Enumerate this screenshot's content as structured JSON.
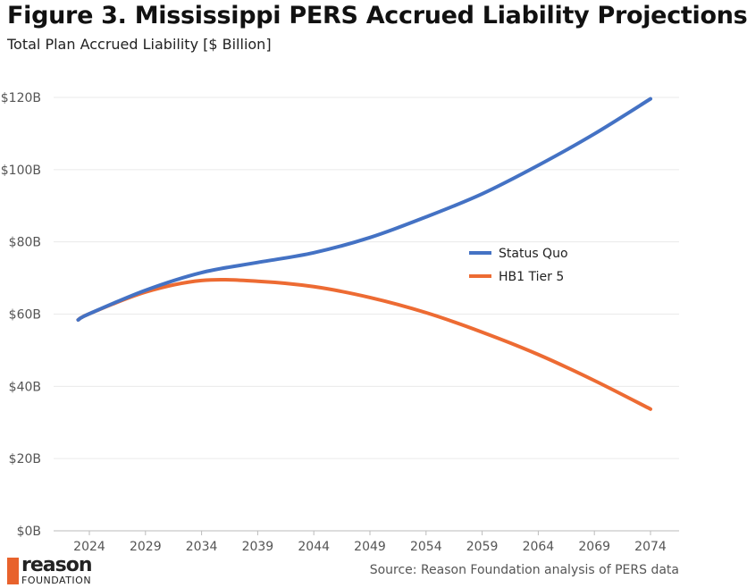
{
  "chart_data": {
    "type": "line",
    "title": "Figure 3. Mississippi PERS Accrued Liability Projections",
    "subtitle": "Total Plan Accrued Liability [$ Billion]",
    "xlabel": "",
    "ylabel": "",
    "x_ticks": [
      "2024",
      "2029",
      "2034",
      "2039",
      "2044",
      "2049",
      "2054",
      "2059",
      "2064",
      "2069",
      "2074"
    ],
    "y_ticks": [
      "$0B",
      "$20B",
      "$40B",
      "$60B",
      "$80B",
      "$100B",
      "$120B"
    ],
    "ylim": [
      0,
      120
    ],
    "xlim": [
      2021,
      2076
    ],
    "grid": "horizontal",
    "legend_placement": "right",
    "series": [
      {
        "name": "Status Quo",
        "color": "#4472c4",
        "x": [
          2023,
          2024,
          2029,
          2034,
          2039,
          2044,
          2049,
          2054,
          2059,
          2064,
          2069,
          2074
        ],
        "values": [
          58.4,
          60.1,
          66.6,
          71.5,
          74.3,
          77.0,
          81.2,
          86.9,
          93.3,
          101.2,
          109.9,
          119.6
        ]
      },
      {
        "name": "HB1 Tier 5",
        "color": "#ed6b33",
        "x": [
          2023,
          2024,
          2029,
          2034,
          2039,
          2044,
          2049,
          2054,
          2059,
          2064,
          2069,
          2074
        ],
        "values": [
          58.4,
          60.1,
          66.1,
          69.3,
          69.1,
          67.6,
          64.6,
          60.4,
          55.0,
          48.8,
          41.6,
          33.7
        ]
      }
    ]
  },
  "footer": {
    "logo_word": "reason",
    "logo_sub": "FOUNDATION",
    "source": "Source: Reason Foundation analysis of PERS data"
  }
}
